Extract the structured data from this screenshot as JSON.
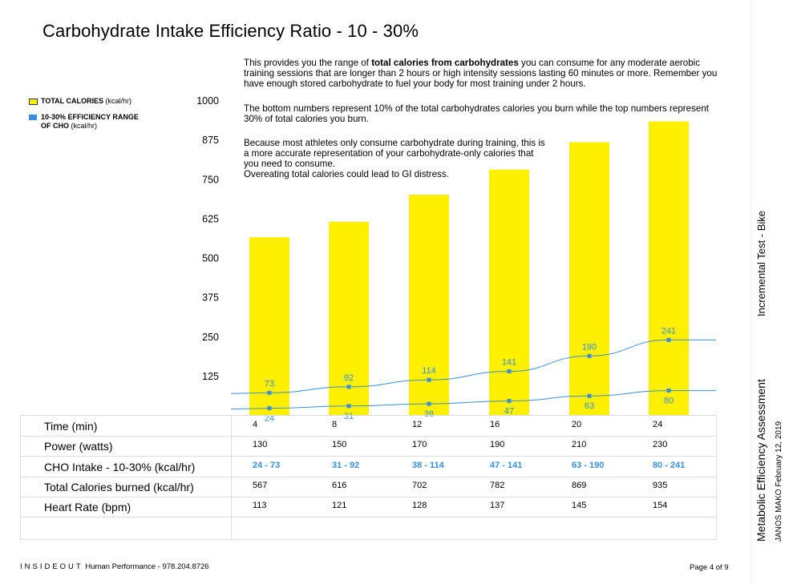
{
  "page": {
    "title": "Carbohydrate Intake Efficiency Ratio - 10 - 30%",
    "desc1_pre": "This provides you the range of ",
    "desc1_bold": "total calories from carbohydrates",
    "desc1_post": " you can consume for any moderate aerobic training sessions that are longer than 2 hours or high intensity sessions lasting 60 minutes or more. Remember you have enough stored carbohydrate to fuel your body for most training under 2 hours.",
    "desc2": "The bottom numbers represent 10% of the total carbohydrates calories you burn while the top numbers represent 30% of total calories you burn.",
    "desc3a": "Because most athletes only consume carbohydrate during training, this is a more accurate representation of your carbohydrate-only calories that you need to consume.",
    "desc3b": "Overeating total calories could lead to GI distress.",
    "side_test": "Incremental Test - Bike",
    "side_assessment": "Metabolic Efficiency Assessment",
    "side_name_date": "JANOS MAKO  February 12, 2019",
    "footer_brand": "INSIDEOUT",
    "footer_company": " Human Performance - 978.204.8726",
    "footer_page": "Page 4 of 9"
  },
  "legend": {
    "item1_bold": "TOTAL CALORIES",
    "item1_unit": " (kcal/hr)",
    "item2_bold_line1": "10-30% EFFICIENCY RANGE",
    "item2_bold_line2": "OF CHO",
    "item2_unit": " (kcal/hr)"
  },
  "colors": {
    "bar": "#ffef00",
    "line": "#3a8fd9",
    "label": "#3a8fd9"
  },
  "chart_data": {
    "type": "bar",
    "x": [
      4,
      8,
      12,
      16,
      20,
      24
    ],
    "ylim": [
      0,
      1000
    ],
    "yticks": [
      125,
      250,
      375,
      500,
      625,
      750,
      875,
      1000
    ],
    "series": [
      {
        "name": "TOTAL CALORIES (kcal/hr)",
        "type": "bar",
        "values": [
          567,
          616,
          702,
          782,
          869,
          935
        ]
      },
      {
        "name": "10-30% EFFICIENCY RANGE OF CHO (kcal/hr)",
        "type": "line",
        "low": [
          24,
          31,
          38,
          47,
          63,
          80
        ],
        "high": [
          73,
          92,
          114,
          141,
          190,
          241
        ]
      }
    ]
  },
  "table": {
    "rows": [
      {
        "label": "Time (min)",
        "values": [
          "4",
          "8",
          "12",
          "16",
          "20",
          "24"
        ]
      },
      {
        "label": "Power (watts)",
        "values": [
          "130",
          "150",
          "170",
          "190",
          "210",
          "230"
        ]
      },
      {
        "label": "CHO Intake - 10-30% (kcal/hr)",
        "values": [
          "24 - 73",
          "31 - 92",
          "38 - 114",
          "47 - 141",
          "63 - 190",
          "80 - 241"
        ]
      },
      {
        "label": "Total Calories burned (kcal/hr)",
        "values": [
          "567",
          "616",
          "702",
          "782",
          "869",
          "935"
        ]
      },
      {
        "label": "Heart Rate (bpm)",
        "values": [
          "113",
          "121",
          "128",
          "137",
          "145",
          "154"
        ]
      }
    ]
  }
}
